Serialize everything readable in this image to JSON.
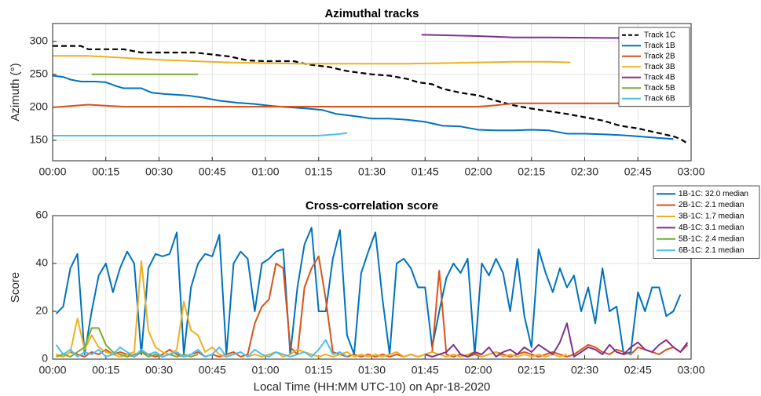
{
  "chart_data": [
    {
      "type": "line",
      "title": "Azimuthal tracks",
      "ylabel": "Azimuth (°)",
      "xlim": [
        0,
        180
      ],
      "ylim": [
        119,
        327
      ],
      "yticks": [
        150,
        200,
        250,
        300
      ],
      "xticks": [
        {
          "value": 0,
          "label": "00:00"
        },
        {
          "value": 15,
          "label": "00:15"
        },
        {
          "value": 30,
          "label": "00:30"
        },
        {
          "value": 45,
          "label": "00:45"
        },
        {
          "value": 60,
          "label": "01:00"
        },
        {
          "value": 75,
          "label": "01:15"
        },
        {
          "value": 90,
          "label": "01:30"
        },
        {
          "value": 105,
          "label": "01:45"
        },
        {
          "value": 120,
          "label": "02:00"
        },
        {
          "value": 135,
          "label": "02:15"
        },
        {
          "value": 150,
          "label": "02:30"
        },
        {
          "value": 165,
          "label": "02:45"
        },
        {
          "value": 180,
          "label": "03:00"
        }
      ],
      "grid": true,
      "legend": "upper right",
      "series": [
        {
          "name": "Track 1C",
          "color": "#000000",
          "dashed": true,
          "x": [
            0,
            8,
            10,
            20,
            25,
            40,
            45,
            50,
            55,
            60,
            68,
            72,
            78,
            83,
            90,
            95,
            100,
            103,
            107,
            110,
            115,
            120,
            125,
            130,
            135,
            140,
            145,
            150,
            155,
            160,
            165,
            170,
            175,
            177,
            179
          ],
          "values": [
            293,
            293,
            288,
            288,
            283,
            283,
            280,
            277,
            271,
            270,
            270,
            265,
            261,
            255,
            250,
            248,
            243,
            238,
            235,
            228,
            222,
            218,
            210,
            203,
            198,
            194,
            190,
            185,
            180,
            172,
            168,
            162,
            156,
            152,
            145
          ]
        },
        {
          "name": "Track 1B",
          "color": "#0072BD",
          "x": [
            0,
            3,
            5,
            8,
            12,
            15,
            18,
            20,
            25,
            28,
            32,
            38,
            42,
            47,
            52,
            57,
            62,
            67,
            72,
            76,
            80,
            83,
            86,
            90,
            95,
            100,
            105,
            110,
            115,
            120,
            125,
            130,
            135,
            140,
            145,
            150,
            155,
            160,
            165,
            170,
            175
          ],
          "values": [
            248,
            246,
            242,
            239,
            239,
            238,
            232,
            229,
            229,
            222,
            220,
            218,
            215,
            210,
            207,
            205,
            202,
            200,
            198,
            196,
            190,
            188,
            186,
            183,
            183,
            181,
            178,
            172,
            171,
            166,
            165,
            165,
            166,
            165,
            160,
            160,
            159,
            158,
            156,
            154,
            152
          ]
        },
        {
          "name": "Track 2B",
          "color": "#D95319",
          "x": [
            0,
            10,
            20,
            30,
            60,
            90,
            110,
            120,
            125,
            130,
            140,
            178
          ],
          "values": [
            200,
            204,
            201,
            201,
            201,
            201,
            201,
            201,
            203,
            206,
            206,
            206
          ]
        },
        {
          "name": "Track 3B",
          "color": "#EDB120",
          "x": [
            0,
            10,
            20,
            30,
            40,
            50,
            60,
            70,
            80,
            90,
            100,
            110,
            120,
            130,
            140,
            146
          ],
          "values": [
            278,
            278,
            275,
            272,
            270,
            268,
            267,
            266,
            266,
            266,
            266,
            267,
            268,
            269,
            269,
            268
          ]
        },
        {
          "name": "Track 4B",
          "color": "#7E2F8E",
          "x": [
            104,
            120,
            130,
            140,
            160
          ],
          "values": [
            310,
            308,
            306,
            306,
            305
          ]
        },
        {
          "name": "Track 5B",
          "color": "#77AC30",
          "x": [
            11,
            41
          ],
          "values": [
            250,
            250
          ]
        },
        {
          "name": "Track 6B",
          "color": "#4DBEEE",
          "x": [
            0,
            40,
            75,
            80,
            83
          ],
          "values": [
            157,
            157,
            157,
            159,
            161
          ]
        }
      ]
    },
    {
      "type": "line",
      "title": "Cross-correlation score",
      "ylabel": "Score",
      "xlabel": "Local Time (HH:MM UTC-10) on Apr-18-2020",
      "xlim": [
        0,
        180
      ],
      "ylim": [
        0,
        60
      ],
      "yticks": [
        0,
        20,
        40,
        60
      ],
      "xticks": [
        {
          "value": 0,
          "label": "00:00"
        },
        {
          "value": 15,
          "label": "00:15"
        },
        {
          "value": 30,
          "label": "00:30"
        },
        {
          "value": 45,
          "label": "00:45"
        },
        {
          "value": 60,
          "label": "01:00"
        },
        {
          "value": 75,
          "label": "01:15"
        },
        {
          "value": 90,
          "label": "01:30"
        },
        {
          "value": 105,
          "label": "01:45"
        },
        {
          "value": 120,
          "label": "02:00"
        },
        {
          "value": 135,
          "label": "02:15"
        },
        {
          "value": 150,
          "label": "02:30"
        },
        {
          "value": 165,
          "label": "02:45"
        },
        {
          "value": 180,
          "label": "03:00"
        }
      ],
      "grid": true,
      "legend": "outside upper right",
      "series": [
        {
          "name": "1B-1C: 32.0 median",
          "color": "#0072BD",
          "x": [
            1,
            3,
            5,
            7,
            9,
            11,
            13,
            15,
            17,
            19,
            21,
            23,
            25,
            27,
            29,
            31,
            33,
            35,
            37,
            39,
            41,
            43,
            45,
            47,
            49,
            51,
            53,
            55,
            57,
            59,
            61,
            63,
            65,
            67,
            69,
            71,
            73,
            75,
            77,
            79,
            81,
            83,
            85,
            87,
            89,
            91,
            93,
            95,
            97,
            99,
            101,
            103,
            105,
            107,
            109,
            111,
            113,
            115,
            117,
            119,
            121,
            123,
            125,
            127,
            129,
            131,
            133,
            135,
            137,
            139,
            141,
            143,
            145,
            147,
            149,
            151,
            153,
            155,
            157,
            159,
            161,
            163,
            165,
            167,
            169,
            171,
            173,
            175,
            177
          ],
          "values": [
            19,
            22,
            38,
            44,
            2,
            20,
            35,
            40,
            28,
            38,
            45,
            40,
            2,
            38,
            44,
            43,
            44,
            53,
            2,
            30,
            40,
            44,
            43,
            52,
            2,
            40,
            45,
            42,
            20,
            40,
            42,
            45,
            46,
            2,
            30,
            48,
            55,
            20,
            20,
            42,
            54,
            10,
            2,
            36,
            45,
            53,
            25,
            2,
            40,
            42,
            38,
            30,
            30,
            5,
            20,
            34,
            40,
            36,
            42,
            2,
            40,
            35,
            42,
            36,
            20,
            42,
            18,
            5,
            46,
            36,
            28,
            38,
            30,
            35,
            20,
            30,
            15,
            38,
            20,
            22,
            2,
            3,
            28,
            20,
            30,
            30,
            18,
            20,
            27
          ]
        },
        {
          "name": "2B-1C: 2.1 median",
          "color": "#D95319",
          "x": [
            1,
            3,
            5,
            7,
            9,
            11,
            13,
            15,
            17,
            19,
            21,
            23,
            25,
            27,
            29,
            31,
            33,
            35,
            37,
            39,
            41,
            43,
            45,
            47,
            49,
            51,
            53,
            55,
            57,
            59,
            61,
            63,
            65,
            67,
            69,
            71,
            73,
            75,
            77,
            79,
            81,
            83,
            85,
            87,
            89,
            91,
            93,
            95,
            97,
            99,
            101,
            103,
            105,
            107,
            109,
            111,
            113,
            115,
            117,
            119,
            121,
            123,
            125,
            127,
            129,
            131,
            133,
            135,
            137,
            139,
            141,
            143,
            145,
            147,
            149,
            151,
            153,
            155,
            157,
            159,
            161,
            163,
            165,
            167,
            169,
            171,
            173,
            175,
            177,
            179
          ],
          "values": [
            2,
            1,
            3,
            2,
            1,
            3,
            2,
            4,
            2,
            3,
            2,
            1,
            3,
            2,
            1,
            2,
            4,
            2,
            1,
            2,
            3,
            1,
            2,
            1,
            2,
            3,
            1,
            2,
            15,
            22,
            25,
            40,
            38,
            5,
            2,
            30,
            38,
            43,
            25,
            3,
            2,
            1,
            2,
            1,
            2,
            1,
            2,
            1,
            2,
            1,
            2,
            1,
            2,
            3,
            37,
            2,
            1,
            2,
            1,
            2,
            1,
            2,
            3,
            2,
            1,
            2,
            3,
            2,
            1,
            2,
            3,
            2,
            1,
            2,
            4,
            6,
            5,
            3,
            2,
            4,
            3,
            2,
            5,
            4,
            3,
            2,
            4,
            5,
            3,
            6
          ]
        },
        {
          "name": "3B-1C: 1.7 median",
          "color": "#EDB120",
          "x": [
            1,
            3,
            5,
            7,
            9,
            11,
            13,
            15,
            17,
            19,
            21,
            23,
            25,
            27,
            29,
            31,
            33,
            35,
            37,
            39,
            41,
            43,
            45,
            47,
            49,
            51,
            53,
            55,
            57,
            59,
            61,
            63,
            65,
            67,
            69,
            71,
            73,
            75,
            77,
            79,
            81,
            83,
            85,
            87,
            89,
            91,
            93,
            95,
            97,
            99,
            101,
            103,
            105,
            107,
            109,
            111,
            113,
            115,
            117,
            119,
            121,
            123,
            125,
            127,
            129,
            131,
            133,
            135,
            137,
            139,
            141,
            143,
            145
          ],
          "values": [
            2,
            1,
            3,
            17,
            4,
            10,
            5,
            3,
            2,
            1,
            2,
            3,
            41,
            12,
            5,
            3,
            2,
            4,
            24,
            12,
            10,
            3,
            5,
            2,
            1,
            2,
            3,
            1,
            2,
            1,
            2,
            3,
            1,
            2,
            4,
            3,
            2,
            1,
            2,
            1,
            2,
            3,
            1,
            2,
            1,
            2,
            1,
            2,
            3,
            1,
            2,
            1,
            2,
            3,
            2,
            1,
            2,
            1,
            2,
            3,
            1,
            2,
            3,
            1,
            2,
            1,
            2,
            1,
            2,
            1,
            2,
            1,
            2
          ]
        },
        {
          "name": "4B-1C: 3.1 median",
          "color": "#7E2F8E",
          "x": [
            105,
            107,
            109,
            111,
            113,
            115,
            117,
            119,
            121,
            123,
            125,
            127,
            129,
            131,
            133,
            135,
            137,
            139,
            141,
            143,
            145,
            147,
            149,
            151,
            153,
            155,
            157,
            159,
            161,
            163,
            165,
            167,
            169,
            171,
            173,
            175,
            177,
            179
          ],
          "values": [
            2,
            1,
            2,
            3,
            6,
            2,
            1,
            3,
            2,
            5,
            1,
            3,
            4,
            2,
            5,
            3,
            6,
            4,
            2,
            7,
            15,
            1,
            3,
            5,
            4,
            2,
            6,
            3,
            2,
            5,
            7,
            4,
            3,
            6,
            8,
            5,
            3,
            7
          ]
        },
        {
          "name": "5B-1C: 2.4 median",
          "color": "#77AC30",
          "x": [
            1,
            3,
            5,
            7,
            9,
            11,
            13,
            15,
            17,
            19,
            21,
            23,
            25,
            27,
            29,
            31,
            33,
            35,
            37,
            39,
            41
          ],
          "values": [
            1,
            2,
            1,
            3,
            5,
            13,
            13,
            6,
            3,
            2,
            1,
            2,
            3,
            1,
            2,
            1,
            2,
            1,
            2,
            1,
            2
          ]
        },
        {
          "name": "6B-1C: 2.1 median",
          "color": "#4DBEEE",
          "x": [
            1,
            3,
            5,
            7,
            9,
            11,
            13,
            15,
            17,
            19,
            21,
            23,
            25,
            27,
            29,
            31,
            33,
            35,
            37,
            39,
            41,
            43,
            45,
            47,
            49,
            51,
            53,
            55,
            57,
            59,
            61,
            63,
            65,
            67,
            69,
            71,
            73,
            75,
            77,
            79,
            81,
            83
          ],
          "values": [
            6,
            2,
            4,
            1,
            3,
            2,
            4,
            1,
            2,
            5,
            3,
            1,
            4,
            2,
            3,
            1,
            2,
            3,
            1,
            2,
            4,
            1,
            2,
            5,
            1,
            2,
            3,
            1,
            4,
            2,
            1,
            3,
            2,
            1,
            2,
            3,
            1,
            4,
            8,
            2,
            3,
            1
          ]
        }
      ]
    }
  ]
}
